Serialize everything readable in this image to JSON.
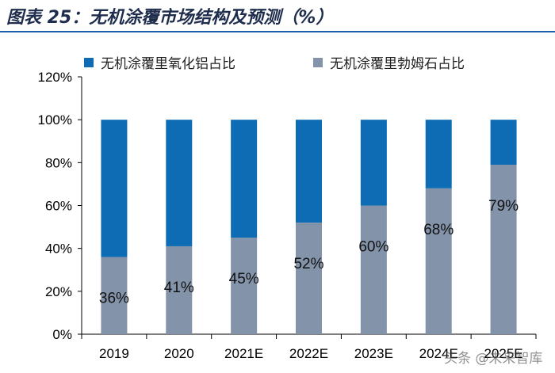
{
  "title": "图表 25：无机涂覆市场结构及预测（%）",
  "watermark": "头条 @未来智库",
  "chart_data": {
    "type": "bar",
    "stacked": true,
    "categories": [
      "2019",
      "2020",
      "2021E",
      "2022E",
      "2023E",
      "2024E",
      "2025E"
    ],
    "series": [
      {
        "name": "无机涂覆里氧化铝占比",
        "color": "#0e6cb5",
        "values": [
          64,
          59,
          55,
          48,
          40,
          32,
          21
        ]
      },
      {
        "name": "无机涂覆里勃姆石占比",
        "color": "#8393a9",
        "values": [
          36,
          41,
          45,
          52,
          60,
          68,
          79
        ]
      }
    ],
    "data_labels": [
      "36%",
      "41%",
      "45%",
      "52%",
      "60%",
      "68%",
      "79%"
    ],
    "ytick_labels": [
      "0%",
      "20%",
      "40%",
      "60%",
      "80%",
      "100%",
      "120%"
    ],
    "ylim": [
      0,
      120
    ],
    "ystep": 20,
    "legend_position": "top"
  }
}
